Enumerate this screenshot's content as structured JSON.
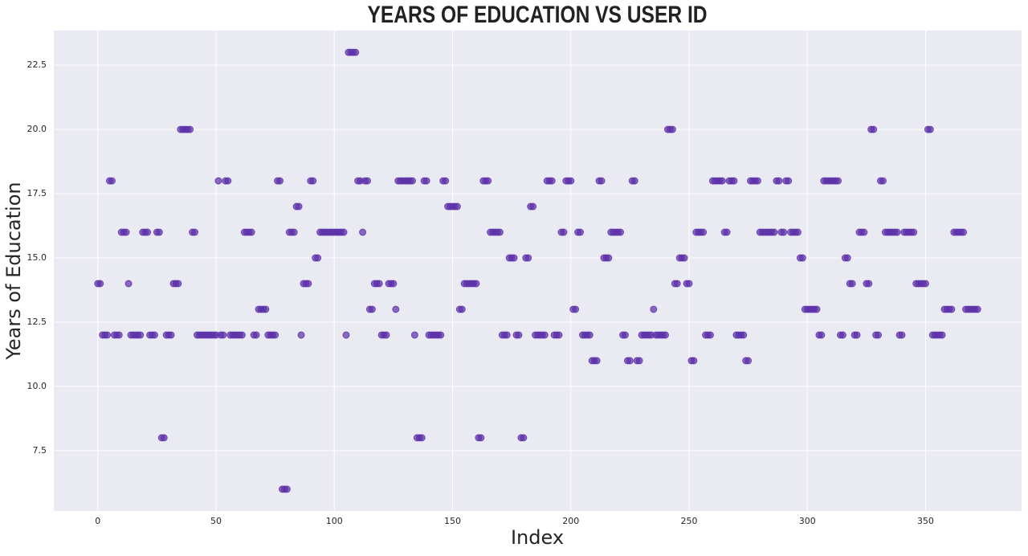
{
  "chart_data": {
    "type": "scatter",
    "title": "YEARS OF EDUCATION VS USER ID",
    "x_label": "Index",
    "y_label": "Years of Education",
    "color": "#5b2fa8",
    "grid": true,
    "xlim": [
      -18.6,
      390.6
    ],
    "ylim": [
      5.15,
      23.85
    ],
    "xticks": [
      0,
      50,
      100,
      150,
      200,
      250,
      300,
      350
    ],
    "yticks": [
      7.5,
      {
        "value": 10,
        "label": "10.0"
      },
      12.5,
      {
        "value": 15,
        "label": "15.0"
      },
      17.5,
      {
        "value": 20,
        "label": "20.0"
      },
      22.5
    ],
    "values": [
      14,
      14,
      12,
      12,
      12,
      18,
      18,
      12,
      12,
      12,
      16,
      16,
      16,
      14,
      12,
      12,
      12,
      12,
      12,
      16,
      16,
      16,
      12,
      12,
      12,
      16,
      16,
      8,
      8,
      12,
      12,
      12,
      14,
      14,
      14,
      20,
      20,
      20,
      20,
      20,
      16,
      16,
      12,
      12,
      12,
      12,
      12,
      12,
      12,
      12,
      12,
      18,
      12,
      12,
      18,
      18,
      12,
      12,
      12,
      12,
      12,
      12,
      16,
      16,
      16,
      16,
      12,
      12,
      13,
      13,
      13,
      13,
      12,
      12,
      12,
      12,
      18,
      18,
      6,
      6,
      6,
      16,
      16,
      16,
      17,
      17,
      12,
      14,
      14,
      14,
      18,
      18,
      15,
      15,
      16,
      16,
      16,
      16,
      16,
      16,
      16,
      16,
      16,
      16,
      16,
      12,
      23,
      23,
      23,
      23,
      18,
      18,
      16,
      18,
      18,
      13,
      13,
      14,
      14,
      14,
      12,
      12,
      12,
      14,
      14,
      14,
      13,
      18,
      18,
      18,
      18,
      18,
      18,
      18,
      12,
      8,
      8,
      8,
      18,
      18,
      12,
      12,
      12,
      12,
      12,
      12,
      18,
      18,
      17,
      17,
      17,
      17,
      17,
      13,
      13,
      14,
      14,
      14,
      14,
      14,
      14,
      8,
      8,
      18,
      18,
      18,
      16,
      16,
      16,
      16,
      16,
      12,
      12,
      12,
      15,
      15,
      15,
      12,
      12,
      8,
      8,
      15,
      15,
      17,
      17,
      12,
      12,
      12,
      12,
      12,
      18,
      18,
      18,
      12,
      12,
      12,
      16,
      16,
      18,
      18,
      18,
      13,
      13,
      16,
      16,
      12,
      12,
      12,
      12,
      11,
      11,
      11,
      18,
      18,
      15,
      15,
      15,
      16,
      16,
      16,
      16,
      16,
      12,
      12,
      11,
      11,
      18,
      18,
      11,
      11,
      12,
      12,
      12,
      12,
      12,
      13,
      12,
      12,
      12,
      12,
      12,
      20,
      20,
      20,
      14,
      14,
      15,
      15,
      15,
      14,
      14,
      11,
      11,
      16,
      16,
      16,
      16,
      12,
      12,
      12,
      18,
      18,
      18,
      18,
      18,
      16,
      16,
      18,
      18,
      18,
      12,
      12,
      12,
      12,
      11,
      11,
      18,
      18,
      18,
      18,
      16,
      16,
      16,
      16,
      16,
      16,
      16,
      18,
      18,
      16,
      16,
      18,
      18,
      16,
      16,
      16,
      16,
      15,
      15,
      13,
      13,
      13,
      13,
      13,
      13,
      12,
      12,
      18,
      18,
      18,
      18,
      18,
      18,
      18,
      12,
      12,
      15,
      15,
      14,
      14,
      12,
      12,
      16,
      16,
      16,
      14,
      14,
      20,
      20,
      12,
      12,
      18,
      18,
      16,
      16,
      16,
      16,
      16,
      16,
      12,
      12,
      16,
      16,
      16,
      16,
      16,
      14,
      14,
      14,
      14,
      14,
      20,
      20,
      12,
      12,
      12,
      12,
      12,
      13,
      13,
      13,
      13,
      16,
      16,
      16,
      16,
      16,
      13,
      13,
      13,
      13,
      13,
      13
    ]
  }
}
